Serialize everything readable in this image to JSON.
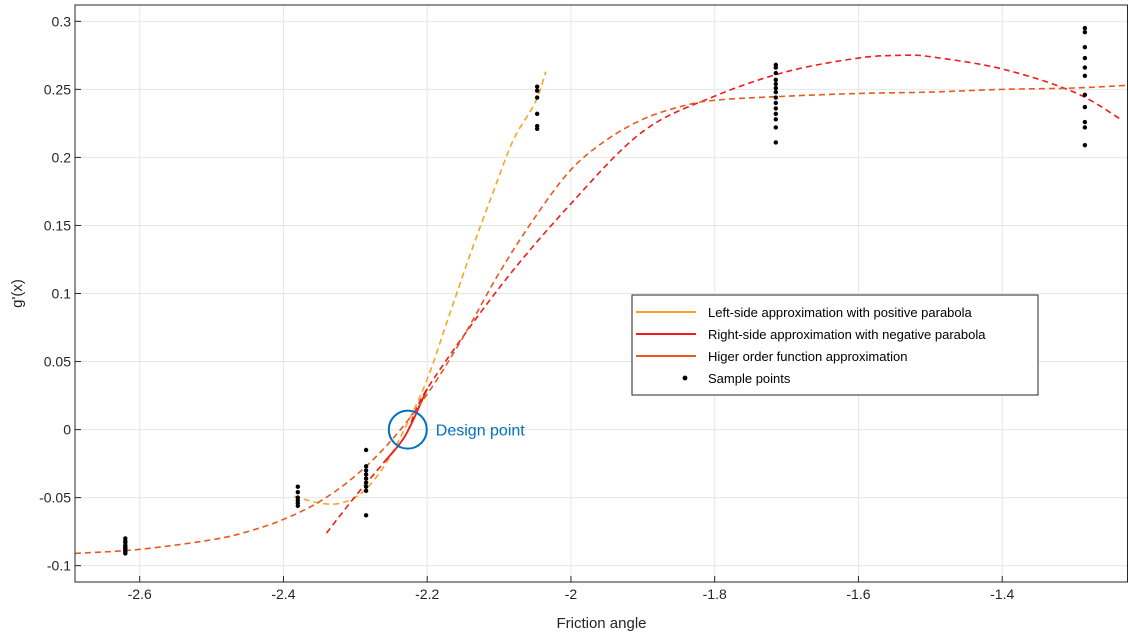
{
  "chart_data": {
    "type": "scatter",
    "title": "",
    "xlabel": "Friction angle",
    "ylabel": "g'(x)",
    "xlim": [
      -2.69,
      -1.225
    ],
    "ylim": [
      -0.112,
      0.312
    ],
    "grid": true,
    "legend_placement": "center-right",
    "x_ticks": [
      -2.6,
      -2.4,
      -2.2,
      -2,
      -1.8,
      -1.6,
      -1.4
    ],
    "x_tick_labels": [
      "-2.6",
      "-2.4",
      "-2.2",
      "-2",
      "-1.8",
      "-1.6",
      "-1.4"
    ],
    "y_ticks": [
      -0.1,
      -0.05,
      0,
      0.05,
      0.1,
      0.15,
      0.2,
      0.25,
      0.3
    ],
    "y_tick_labels": [
      "-0.1",
      "-0.05",
      "0",
      "0.05",
      "0.1",
      "0.15",
      "0.2",
      "0.25",
      "0.3"
    ],
    "series": [
      {
        "name": "Left-side approximation with positive parabola",
        "color": "#f5a623",
        "style": "dashed",
        "points": [
          [
            -2.385,
            -0.049
          ],
          [
            -2.35,
            -0.054
          ],
          [
            -2.32,
            -0.054
          ],
          [
            -2.29,
            -0.046
          ],
          [
            -2.26,
            -0.027
          ],
          [
            -2.23,
            0.002
          ],
          [
            -2.2,
            0.037
          ],
          [
            -2.17,
            0.083
          ],
          [
            -2.14,
            0.129
          ],
          [
            -2.11,
            0.172
          ],
          [
            -2.08,
            0.213
          ],
          [
            -2.05,
            0.24
          ],
          [
            -2.035,
            0.263
          ]
        ]
      },
      {
        "name": "Right-side approximation with negative parabola",
        "color": "#ee1c1c",
        "style": "dashed-with-solid-segment",
        "points": [
          [
            -2.34,
            -0.076
          ],
          [
            -2.3,
            -0.049
          ],
          [
            -2.26,
            -0.024
          ],
          [
            -2.23,
            -0.004
          ],
          [
            -2.2,
            0.03
          ],
          [
            -2.1,
            0.104
          ],
          [
            -2.0,
            0.166
          ],
          [
            -1.9,
            0.219
          ],
          [
            -1.8,
            0.245
          ],
          [
            -1.7,
            0.263
          ],
          [
            -1.6,
            0.273
          ],
          [
            -1.54,
            0.275
          ],
          [
            -1.5,
            0.274
          ],
          [
            -1.4,
            0.265
          ],
          [
            -1.3,
            0.248
          ],
          [
            -1.235,
            0.228
          ]
        ]
      },
      {
        "name": "Higer order function approximation",
        "color": "#e85a1c",
        "style": "dashed",
        "points": [
          [
            -2.69,
            -0.091
          ],
          [
            -2.6,
            -0.088
          ],
          [
            -2.5,
            -0.081
          ],
          [
            -2.45,
            -0.075
          ],
          [
            -2.4,
            -0.066
          ],
          [
            -2.35,
            -0.053
          ],
          [
            -2.3,
            -0.034
          ],
          [
            -2.25,
            -0.008
          ],
          [
            -2.2,
            0.026
          ],
          [
            -2.15,
            0.068
          ],
          [
            -2.1,
            0.115
          ],
          [
            -2.05,
            0.156
          ],
          [
            -2.0,
            0.191
          ],
          [
            -1.95,
            0.213
          ],
          [
            -1.9,
            0.228
          ],
          [
            -1.85,
            0.237
          ],
          [
            -1.8,
            0.242
          ],
          [
            -1.7,
            0.245
          ],
          [
            -1.6,
            0.247
          ],
          [
            -1.5,
            0.248
          ],
          [
            -1.4,
            0.25
          ],
          [
            -1.3,
            0.251
          ],
          [
            -1.225,
            0.253
          ]
        ]
      },
      {
        "name": "Sample points",
        "color": "#000000",
        "style": "markers",
        "points": [
          [
            -2.62,
            -0.08
          ],
          [
            -2.62,
            -0.082
          ],
          [
            -2.62,
            -0.083
          ],
          [
            -2.62,
            -0.085
          ],
          [
            -2.62,
            -0.086
          ],
          [
            -2.62,
            -0.087
          ],
          [
            -2.62,
            -0.088
          ],
          [
            -2.62,
            -0.089
          ],
          [
            -2.62,
            -0.09
          ],
          [
            -2.62,
            -0.091
          ],
          [
            -2.38,
            -0.042
          ],
          [
            -2.38,
            -0.046
          ],
          [
            -2.38,
            -0.05
          ],
          [
            -2.38,
            -0.052
          ],
          [
            -2.38,
            -0.054
          ],
          [
            -2.38,
            -0.056
          ],
          [
            -2.285,
            -0.015
          ],
          [
            -2.285,
            -0.027
          ],
          [
            -2.285,
            -0.03
          ],
          [
            -2.285,
            -0.033
          ],
          [
            -2.285,
            -0.036
          ],
          [
            -2.285,
            -0.039
          ],
          [
            -2.285,
            -0.042
          ],
          [
            -2.285,
            -0.045
          ],
          [
            -2.285,
            -0.063
          ],
          [
            -2.047,
            0.221
          ],
          [
            -2.047,
            0.223
          ],
          [
            -2.047,
            0.232
          ],
          [
            -2.047,
            0.244
          ],
          [
            -2.047,
            0.249
          ],
          [
            -2.047,
            0.252
          ],
          [
            -1.715,
            0.211
          ],
          [
            -1.715,
            0.222
          ],
          [
            -1.715,
            0.228
          ],
          [
            -1.715,
            0.232
          ],
          [
            -1.715,
            0.236
          ],
          [
            -1.715,
            0.24
          ],
          [
            -1.715,
            0.244
          ],
          [
            -1.715,
            0.248
          ],
          [
            -1.715,
            0.251
          ],
          [
            -1.715,
            0.254
          ],
          [
            -1.715,
            0.257
          ],
          [
            -1.715,
            0.262
          ],
          [
            -1.715,
            0.266
          ],
          [
            -1.715,
            0.268
          ],
          [
            -1.285,
            0.209
          ],
          [
            -1.285,
            0.222
          ],
          [
            -1.285,
            0.226
          ],
          [
            -1.285,
            0.237
          ],
          [
            -1.285,
            0.246
          ],
          [
            -1.285,
            0.26
          ],
          [
            -1.285,
            0.266
          ],
          [
            -1.285,
            0.273
          ],
          [
            -1.285,
            0.281
          ],
          [
            -1.285,
            0.292
          ],
          [
            -1.285,
            0.295
          ]
        ]
      }
    ],
    "annotations": [
      {
        "text": "Design point",
        "x": -2.227,
        "y": 0.0,
        "color": "#0070c0"
      }
    ]
  }
}
